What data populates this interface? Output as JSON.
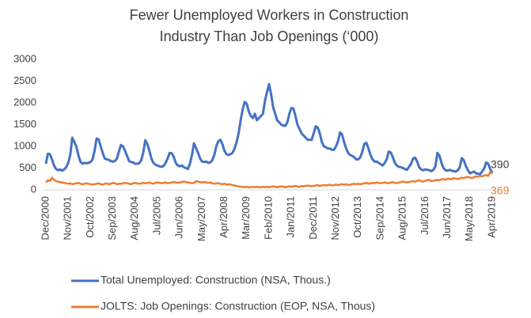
{
  "chart_data": {
    "type": "line",
    "title": "Fewer Unemployed Workers in Construction Industry Than Job Openings (‘000)",
    "categories": [
      "Dec/2000",
      null,
      null,
      null,
      null,
      null,
      null,
      null,
      null,
      null,
      null,
      "Nov/2001",
      null,
      null,
      null,
      null,
      null,
      null,
      null,
      null,
      null,
      null,
      "Oct/2002",
      null,
      null,
      null,
      null,
      null,
      null,
      null,
      null,
      null,
      null,
      "Sep/2003",
      null,
      null,
      null,
      null,
      null,
      null,
      null,
      null,
      null,
      null,
      "Aug/2004",
      null,
      null,
      null,
      null,
      null,
      null,
      null,
      null,
      null,
      null,
      "Jul/2005",
      null,
      null,
      null,
      null,
      null,
      null,
      null,
      null,
      null,
      null,
      "Jun/2006",
      null,
      null,
      null,
      null,
      null,
      null,
      null,
      null,
      null,
      null,
      "May/2007",
      null,
      null,
      null,
      null,
      null,
      null,
      null,
      null,
      null,
      null,
      "Apr/2008",
      null,
      null,
      null,
      null,
      null,
      null,
      null,
      null,
      null,
      null,
      "Mar/2009",
      null,
      null,
      null,
      null,
      null,
      null,
      null,
      null,
      null,
      null,
      "Feb/2010",
      null,
      null,
      null,
      null,
      null,
      null,
      null,
      null,
      null,
      null,
      "Jan/2011",
      null,
      null,
      null,
      null,
      null,
      null,
      null,
      null,
      null,
      null,
      "Dec/2011",
      null,
      null,
      null,
      null,
      null,
      null,
      null,
      null,
      null,
      null,
      "Nov/2012",
      null,
      null,
      null,
      null,
      null,
      null,
      null,
      null,
      null,
      null,
      "Oct/2013",
      null,
      null,
      null,
      null,
      null,
      null,
      null,
      null,
      null,
      null,
      "Sep/2014",
      null,
      null,
      null,
      null,
      null,
      null,
      null,
      null,
      null,
      null,
      "Aug/2015",
      null,
      null,
      null,
      null,
      null,
      null,
      null,
      null,
      null,
      null,
      "Jul/2016",
      null,
      null,
      null,
      null,
      null,
      null,
      null,
      null,
      null,
      null,
      "Jun/2017",
      null,
      null,
      null,
      null,
      null,
      null,
      null,
      null,
      null,
      null,
      "May/2018",
      null,
      null,
      null,
      null,
      null,
      null,
      null,
      null,
      null,
      null,
      "Apr/2019"
    ],
    "series": [
      {
        "name": "Total Unemployed: Construction (NSA, Thous.)",
        "color": "#4472c4",
        "values": [
          600,
          830,
          820,
          700,
          560,
          480,
          450,
          470,
          440,
          470,
          520,
          620,
          800,
          1200,
          1100,
          1000,
          800,
          650,
          600,
          620,
          610,
          620,
          640,
          700,
          900,
          1180,
          1160,
          1000,
          850,
          720,
          700,
          690,
          660,
          650,
          660,
          720,
          880,
          1030,
          1000,
          900,
          780,
          660,
          640,
          630,
          600,
          600,
          610,
          680,
          860,
          1140,
          1050,
          900,
          720,
          620,
          580,
          560,
          540,
          530,
          550,
          620,
          720,
          850,
          840,
          760,
          620,
          560,
          540,
          560,
          520,
          500,
          480,
          600,
          800,
          1070,
          960,
          850,
          720,
          650,
          640,
          650,
          620,
          630,
          680,
          800,
          1000,
          1120,
          1150,
          1050,
          900,
          820,
          800,
          820,
          850,
          950,
          1100,
          1300,
          1600,
          1850,
          2020,
          1980,
          1800,
          1700,
          1650,
          1750,
          1600,
          1650,
          1700,
          1750,
          2050,
          2250,
          2430,
          2200,
          1900,
          1750,
          1600,
          1550,
          1500,
          1480,
          1470,
          1550,
          1750,
          1880,
          1870,
          1700,
          1500,
          1400,
          1300,
          1250,
          1200,
          1150,
          1150,
          1150,
          1300,
          1460,
          1430,
          1300,
          1100,
          1000,
          980,
          950,
          950,
          920,
          920,
          1000,
          1120,
          1320,
          1270,
          1100,
          950,
          850,
          800,
          780,
          750,
          700,
          700,
          750,
          880,
          1060,
          1080,
          950,
          800,
          700,
          650,
          650,
          620,
          590,
          560,
          620,
          700,
          880,
          860,
          750,
          620,
          560,
          530,
          520,
          500,
          480,
          460,
          530,
          600,
          720,
          740,
          650,
          520,
          470,
          450,
          470,
          460,
          450,
          430,
          460,
          540,
          850,
          780,
          620,
          500,
          450,
          440,
          460,
          440,
          430,
          420,
          450,
          520,
          730,
          680,
          550,
          450,
          380,
          400,
          420,
          380,
          370,
          360,
          420,
          490,
          630,
          600,
          480,
          390
        ]
      },
      {
        "name": "JOLTS: Job Openings: Construction (EOP, NSA, Thous)",
        "color": "#ed7d31",
        "values": [
          170,
          220,
          200,
          280,
          230,
          200,
          190,
          180,
          170,
          160,
          150,
          140,
          150,
          130,
          140,
          150,
          160,
          140,
          130,
          140,
          150,
          140,
          130,
          120,
          130,
          140,
          150,
          130,
          120,
          140,
          150,
          130,
          140,
          160,
          150,
          130,
          140,
          140,
          150,
          160,
          150,
          140,
          130,
          150,
          160,
          150,
          140,
          150,
          160,
          150,
          160,
          170,
          150,
          140,
          160,
          170,
          160,
          150,
          160,
          170,
          150,
          160,
          170,
          180,
          170,
          160,
          170,
          180,
          190,
          180,
          170,
          160,
          150,
          160,
          200,
          190,
          180,
          170,
          180,
          170,
          160,
          170,
          150,
          140,
          150,
          150,
          140,
          130,
          140,
          120,
          130,
          120,
          110,
          100,
          90,
          80,
          70,
          70,
          60,
          70,
          60,
          60,
          70,
          60,
          70,
          60,
          60,
          70,
          60,
          70,
          60,
          70,
          80,
          70,
          60,
          70,
          80,
          70,
          60,
          70,
          80,
          70,
          80,
          90,
          80,
          70,
          90,
          80,
          90,
          100,
          90,
          80,
          90,
          100,
          110,
          90,
          100,
          110,
          100,
          110,
          120,
          100,
          110,
          120,
          110,
          120,
          130,
          120,
          130,
          110,
          120,
          130,
          140,
          130,
          140,
          130,
          140,
          150,
          160,
          140,
          150,
          160,
          150,
          170,
          160,
          150,
          160,
          170,
          160,
          150,
          170,
          180,
          160,
          150,
          170,
          180,
          190,
          180,
          170,
          180,
          190,
          200,
          190,
          210,
          220,
          200,
          190,
          210,
          220,
          230,
          200,
          210,
          220,
          230,
          220,
          240,
          250,
          230,
          260,
          250,
          240,
          270,
          260,
          250,
          260,
          280,
          270,
          290,
          300,
          280,
          270,
          290,
          310,
          300,
          320,
          310,
          330,
          340,
          320,
          410,
          369
        ]
      }
    ],
    "ylim": [
      0,
      3000
    ],
    "yticks": [
      0,
      500,
      1000,
      1500,
      2000,
      2500,
      3000
    ],
    "grid": false
  }
}
